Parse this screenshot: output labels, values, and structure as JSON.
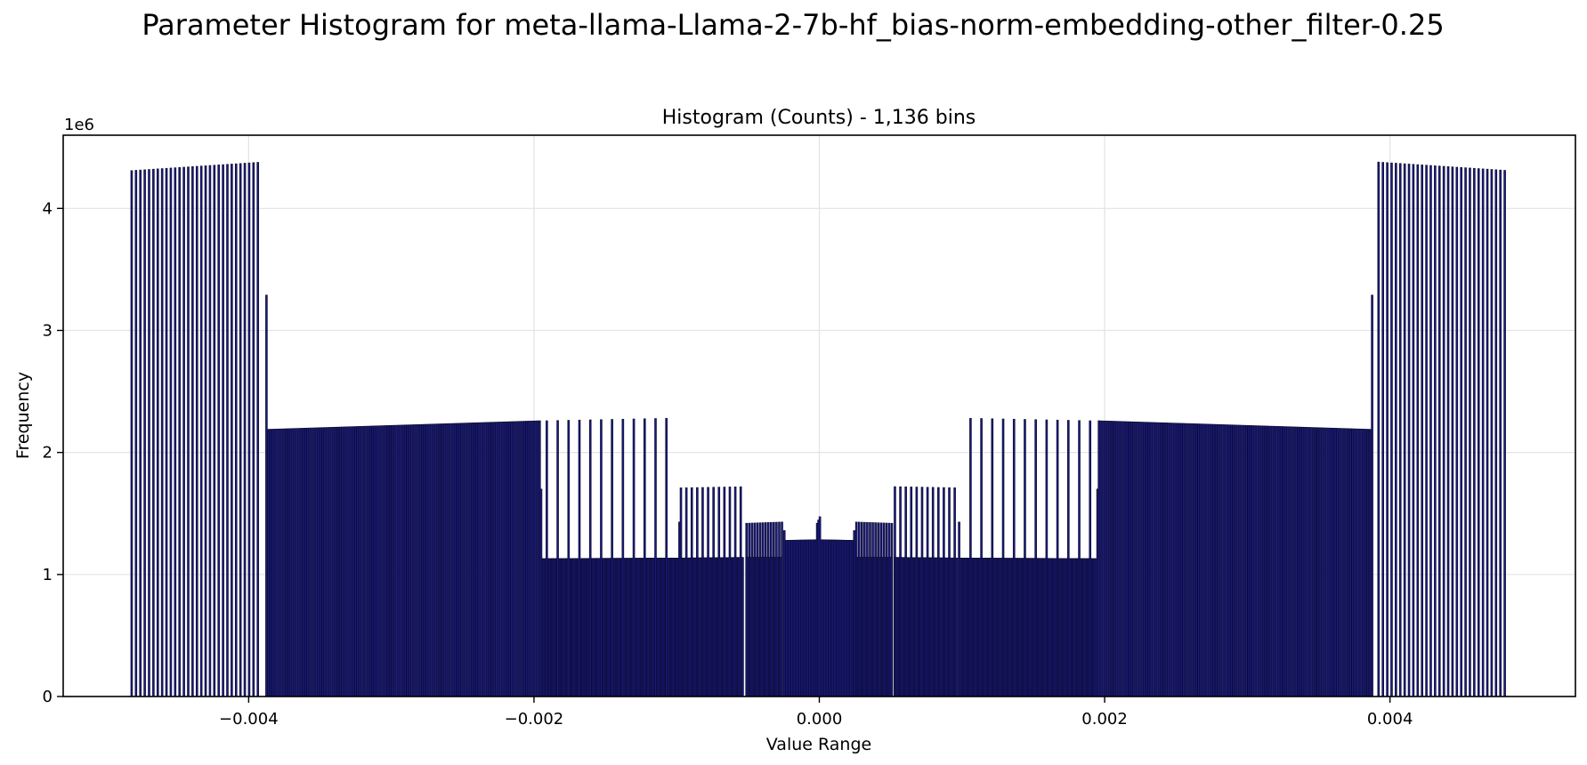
{
  "chart_data": {
    "type": "bar",
    "title": "Parameter Histogram for meta-llama-Llama-2-7b-hf_bias-norm-embedding-other_filter-0.25",
    "subtitle": "Histogram (Counts) - 1,136 bins",
    "xlabel": "Value Range",
    "ylabel": "Frequency",
    "y_offset_label": "1e6",
    "xlim": [
      -0.0053,
      0.0053
    ],
    "ylim": [
      0,
      4.6
    ],
    "grid": true,
    "x_ticks": [
      -0.004,
      -0.002,
      0.0,
      0.002,
      0.004
    ],
    "x_tick_labels": [
      "−0.004",
      "−0.002",
      "0.000",
      "0.002",
      "0.004"
    ],
    "y_ticks": [
      0,
      1,
      2,
      3,
      4
    ],
    "y_tick_labels": [
      "0",
      "1",
      "2",
      "3",
      "4"
    ],
    "bar_color": "#1a1a7e",
    "bar_edge_color": "#0a0a2a",
    "segments": [
      {
        "from": -0.00482,
        "to": -0.00392,
        "step": 3.05e-05,
        "y_start": 4.31,
        "y_end": 4.38
      },
      {
        "from": -0.003875,
        "to": -0.003875,
        "step": 3.05e-05,
        "y_start": 3.29,
        "y_end": 3.29
      },
      {
        "from": -0.00386,
        "to": -0.00196,
        "step": 1.52e-05,
        "y_start": 2.19,
        "y_end": 2.26
      },
      {
        "from": -0.00195,
        "to": -0.00195,
        "step": 1.52e-05,
        "y_start": 1.7,
        "y_end": 1.7
      },
      {
        "from": -0.00194,
        "to": -0.00098,
        "step": 7.6e-06,
        "y_start": 1.13,
        "y_end": 1.135
      },
      {
        "from": -0.00191,
        "to": -0.00106,
        "step": 7.62e-05,
        "y_start": 2.26,
        "y_end": 2.28
      },
      {
        "from": -0.00098,
        "to": -0.00098,
        "step": 7.6e-06,
        "y_start": 1.43,
        "y_end": 1.43
      },
      {
        "from": -0.00097,
        "to": -0.00053,
        "step": 3.81e-05,
        "y_start": 1.71,
        "y_end": 1.72
      },
      {
        "from": -0.00097,
        "to": -0.00053,
        "step": 7.6e-06,
        "y_start": 1.135,
        "y_end": 1.14
      },
      {
        "from": -0.00051,
        "to": -0.00026,
        "step": 1.91e-05,
        "y_start": 1.42,
        "y_end": 1.43
      },
      {
        "from": -0.00051,
        "to": -0.00026,
        "step": 7.6e-06,
        "y_start": 1.14,
        "y_end": 1.14
      },
      {
        "from": -0.000245,
        "to": -0.000245,
        "step": 7.6e-06,
        "y_start": 1.36,
        "y_end": 1.36
      },
      {
        "from": -0.00023,
        "to": -2e-05,
        "step": 9.5e-06,
        "y_start": 1.28,
        "y_end": 1.285
      },
      {
        "from": -1.5e-05,
        "to": 1e-05,
        "step": 9.5e-06,
        "y_start": 1.42,
        "y_end": 1.5
      },
      {
        "from": 2e-05,
        "to": 0.00023,
        "step": 9.5e-06,
        "y_start": 1.285,
        "y_end": 1.28
      },
      {
        "from": 0.000245,
        "to": 0.000245,
        "step": 7.6e-06,
        "y_start": 1.36,
        "y_end": 1.36
      },
      {
        "from": 0.00026,
        "to": 0.00051,
        "step": 1.91e-05,
        "y_start": 1.43,
        "y_end": 1.42
      },
      {
        "from": 0.00026,
        "to": 0.00051,
        "step": 7.6e-06,
        "y_start": 1.14,
        "y_end": 1.14
      },
      {
        "from": 0.00053,
        "to": 0.00097,
        "step": 3.81e-05,
        "y_start": 1.72,
        "y_end": 1.71
      },
      {
        "from": 0.00053,
        "to": 0.00097,
        "step": 7.6e-06,
        "y_start": 1.14,
        "y_end": 1.135
      },
      {
        "from": 0.00098,
        "to": 0.00098,
        "step": 7.6e-06,
        "y_start": 1.43,
        "y_end": 1.43
      },
      {
        "from": 0.00106,
        "to": 0.00191,
        "step": 7.62e-05,
        "y_start": 2.28,
        "y_end": 2.26
      },
      {
        "from": 0.00098,
        "to": 0.00194,
        "step": 7.6e-06,
        "y_start": 1.135,
        "y_end": 1.13
      },
      {
        "from": 0.00195,
        "to": 0.00195,
        "step": 1.52e-05,
        "y_start": 1.7,
        "y_end": 1.7
      },
      {
        "from": 0.00196,
        "to": 0.00386,
        "step": 1.52e-05,
        "y_start": 2.26,
        "y_end": 2.19
      },
      {
        "from": 0.003875,
        "to": 0.003875,
        "step": 3.05e-05,
        "y_start": 3.29,
        "y_end": 3.29
      },
      {
        "from": 0.00392,
        "to": 0.00482,
        "step": 3.05e-05,
        "y_start": 4.38,
        "y_end": 4.31
      }
    ]
  }
}
